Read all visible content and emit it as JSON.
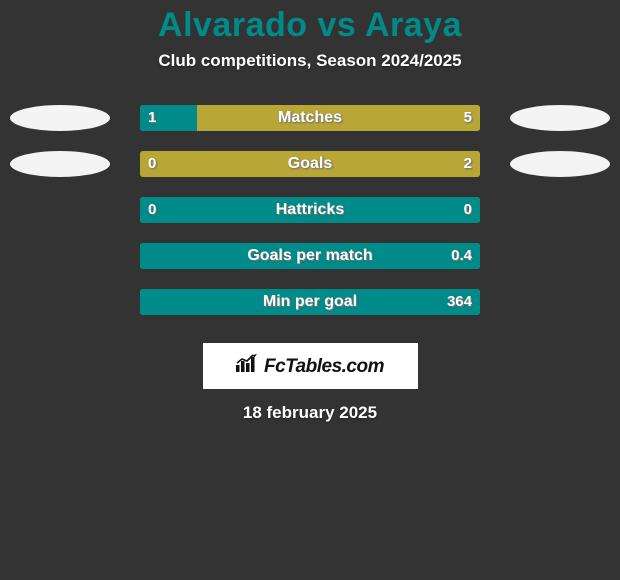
{
  "background_color": "#333333",
  "title": {
    "text": "Alvarado vs Araya",
    "color": "#008b8b",
    "fontsize": 34
  },
  "subtitle": {
    "text": "Club competitions, Season 2024/2025",
    "color": "#ffffff",
    "fontsize": 17
  },
  "player_left": {
    "badge_color": "#f4f4f4"
  },
  "player_right": {
    "badge_color": "#f4f4f4"
  },
  "bar_track_color": "#b8a637",
  "left_color": "#008b8b",
  "right_color": "#b8a637",
  "rows": [
    {
      "label": "Matches",
      "left_val": "1",
      "right_val": "5",
      "left_pct": 16.7,
      "show_badges": true
    },
    {
      "label": "Goals",
      "left_val": "0",
      "right_val": "2",
      "left_pct": 0.0,
      "show_badges": true
    },
    {
      "label": "Hattricks",
      "left_val": "0",
      "right_val": "0",
      "left_pct": 100.0,
      "show_badges": false
    },
    {
      "label": "Goals per match",
      "left_val": "",
      "right_val": "0.4",
      "left_pct": 100.0,
      "show_badges": false
    },
    {
      "label": "Min per goal",
      "left_val": "",
      "right_val": "364",
      "left_pct": 100.0,
      "show_badges": false
    }
  ],
  "brand": {
    "text": "FcTables.com",
    "box_bg": "#ffffff",
    "text_color": "#111111"
  },
  "date": {
    "text": "18 february 2025",
    "color": "#ffffff"
  }
}
